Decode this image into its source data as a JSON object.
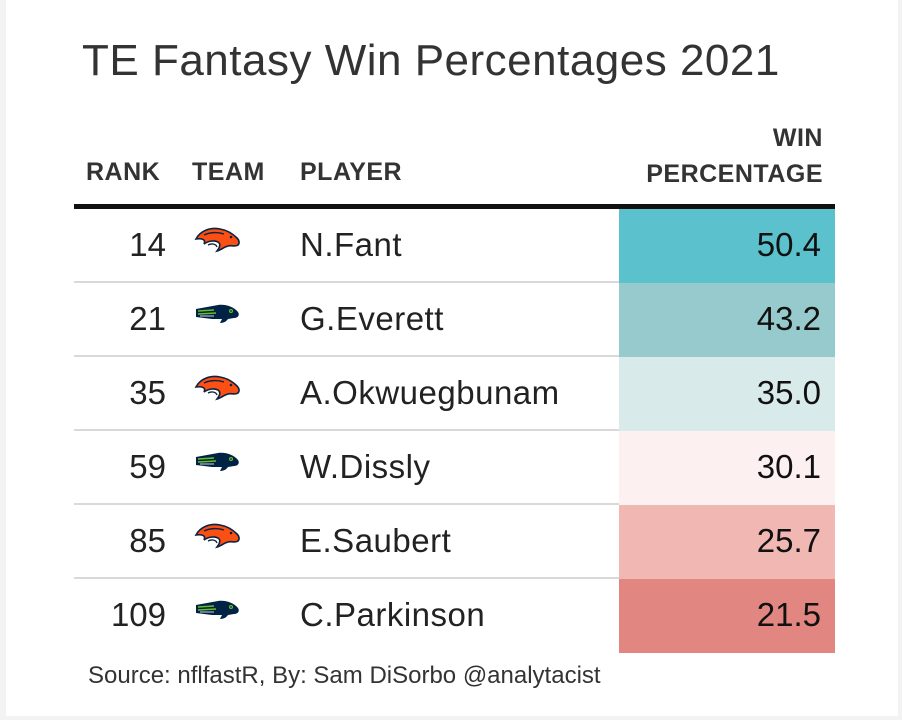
{
  "title": "TE Fantasy Win Percentages 2021",
  "headers": {
    "rank": "RANK",
    "team": "TEAM",
    "player": "PLAYER",
    "win_line1": "WIN",
    "win_line2": "PERCENTAGE"
  },
  "source": "Source: nflfastR, By: Sam DiSorbo @analytacist",
  "chart_data": {
    "type": "table",
    "title": "TE Fantasy Win Percentages 2021",
    "columns": [
      "RANK",
      "TEAM",
      "PLAYER",
      "WIN PERCENTAGE"
    ],
    "rows": [
      {
        "rank": "14",
        "team": "broncos-logo-icon",
        "player": "N.Fant",
        "win_pct": "50.4",
        "color": "#5bc2cd"
      },
      {
        "rank": "21",
        "team": "seahawks-logo-icon",
        "player": "G.Everett",
        "win_pct": "43.2",
        "color": "#96cacc"
      },
      {
        "rank": "35",
        "team": "broncos-logo-icon",
        "player": "A.Okwuegbunam",
        "win_pct": "35.0",
        "color": "#d8eaea"
      },
      {
        "rank": "59",
        "team": "seahawks-logo-icon",
        "player": "W.Dissly",
        "win_pct": "30.1",
        "color": "#fcf0f0"
      },
      {
        "rank": "85",
        "team": "broncos-logo-icon",
        "player": "E.Saubert",
        "win_pct": "25.7",
        "color": "#f1b8b3"
      },
      {
        "rank": "109",
        "team": "seahawks-logo-icon",
        "player": "C.Parkinson",
        "win_pct": "21.5",
        "color": "#e18680"
      }
    ]
  }
}
